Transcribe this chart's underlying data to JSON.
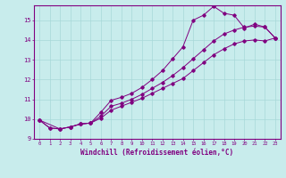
{
  "xlabel": "Windchill (Refroidissement éolien,°C)",
  "bg_color": "#c8ecec",
  "line_color": "#800080",
  "grid_color": "#a8d8d8",
  "x_min": -0.5,
  "x_max": 23.5,
  "y_min": 9.0,
  "y_max": 15.75,
  "series1_x": [
    0,
    1,
    2,
    3,
    4,
    5,
    6,
    7,
    8,
    9,
    10,
    11,
    12,
    13,
    14,
    15,
    16,
    17,
    18,
    19,
    20,
    21,
    22,
    23
  ],
  "series1_y": [
    9.95,
    9.55,
    9.5,
    9.6,
    9.75,
    9.8,
    10.35,
    10.95,
    11.1,
    11.3,
    11.6,
    12.0,
    12.45,
    13.05,
    13.65,
    15.0,
    15.25,
    15.7,
    15.35,
    15.25,
    14.6,
    14.8,
    14.65,
    14.1
  ],
  "series2_x": [
    0,
    1,
    2,
    3,
    4,
    5,
    6,
    7,
    8,
    9,
    10,
    11,
    12,
    13,
    14,
    15,
    16,
    17,
    18,
    19,
    20,
    21,
    22,
    23
  ],
  "series2_y": [
    9.95,
    9.55,
    9.5,
    9.6,
    9.75,
    9.8,
    10.15,
    10.65,
    10.8,
    11.0,
    11.25,
    11.55,
    11.85,
    12.2,
    12.6,
    13.05,
    13.5,
    13.95,
    14.3,
    14.5,
    14.65,
    14.7,
    14.65,
    14.1
  ],
  "series3_x": [
    0,
    2,
    3,
    4,
    5,
    6,
    7,
    8,
    9,
    10,
    11,
    12,
    13,
    14,
    15,
    16,
    17,
    18,
    19,
    20,
    21,
    22,
    23
  ],
  "series3_y": [
    9.95,
    9.5,
    9.6,
    9.75,
    9.8,
    10.05,
    10.45,
    10.65,
    10.85,
    11.05,
    11.3,
    11.55,
    11.8,
    12.05,
    12.45,
    12.85,
    13.25,
    13.55,
    13.8,
    13.95,
    14.0,
    13.95,
    14.1
  ]
}
